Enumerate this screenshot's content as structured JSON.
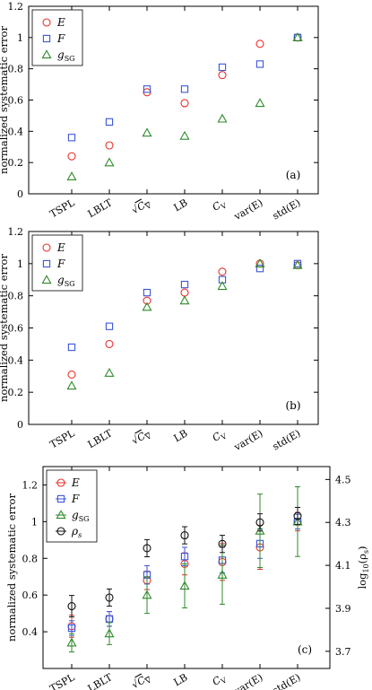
{
  "chart_data": [
    {
      "type": "scatter",
      "panel_label": "(a)",
      "ylabel": "normalized systematic error",
      "ylim": [
        0,
        1.2
      ],
      "yticks": [
        "0",
        "0.2",
        "0.4",
        "0.6",
        "0.8",
        "1",
        "1.2"
      ],
      "categories": [
        "TSPL",
        "LBLT",
        "√C_V",
        "LB",
        "C_V",
        "var(E)",
        "std(E)"
      ],
      "legend_position": "top-left",
      "series": [
        {
          "name": "E",
          "values": [
            0.24,
            0.31,
            0.65,
            0.58,
            0.76,
            0.96,
            1.0
          ]
        },
        {
          "name": "F",
          "values": [
            0.36,
            0.46,
            0.67,
            0.67,
            0.81,
            0.83,
            1.0
          ]
        },
        {
          "name": "g_SG",
          "values": [
            0.11,
            0.2,
            0.39,
            0.37,
            0.48,
            0.58,
            1.0
          ]
        }
      ]
    },
    {
      "type": "scatter",
      "panel_label": "(b)",
      "ylabel": "normalized systematic error",
      "ylim": [
        0,
        1.2
      ],
      "yticks": [
        "0",
        "0.2",
        "0.4",
        "0.6",
        "0.8",
        "1",
        "1.2"
      ],
      "categories": [
        "TSPL",
        "LBLT",
        "√C_V",
        "LB",
        "C_V",
        "var(E)",
        "std(E)"
      ],
      "legend_position": "top-left",
      "series": [
        {
          "name": "E",
          "values": [
            0.31,
            0.5,
            0.77,
            0.82,
            0.95,
            1.0,
            0.99
          ]
        },
        {
          "name": "F",
          "values": [
            0.48,
            0.61,
            0.82,
            0.87,
            0.9,
            0.97,
            1.0
          ]
        },
        {
          "name": "g_SG",
          "values": [
            0.24,
            0.32,
            0.73,
            0.77,
            0.86,
            1.0,
            0.99
          ]
        }
      ]
    },
    {
      "type": "scatter",
      "panel_label": "(c)",
      "ylabel": "normalized systematic error",
      "y2label": "log₁₀(ρ_s)",
      "ylim": [
        0.2,
        1.3
      ],
      "y2lim": [
        3.62,
        4.56
      ],
      "yticks": [
        "0.4",
        "0.6",
        "0.8",
        "1",
        "1.2"
      ],
      "y2ticks": [
        "3.7",
        "3.9",
        "4.1",
        "4.3",
        "4.5"
      ],
      "categories": [
        "TSPL",
        "LBLT",
        "√C_V",
        "LB",
        "C_V",
        "var(E)",
        "std(E)"
      ],
      "legend_position": "top-left",
      "series": [
        {
          "name": "E",
          "axis": "left",
          "values": [
            0.43,
            0.47,
            0.68,
            0.77,
            0.78,
            0.86,
            1.0
          ],
          "errors": [
            0.06,
            0.04,
            0.05,
            0.06,
            0.1,
            0.12,
            0.05
          ]
        },
        {
          "name": "F",
          "axis": "left",
          "values": [
            0.42,
            0.47,
            0.71,
            0.81,
            0.79,
            0.88,
            1.0
          ],
          "errors": [
            0.04,
            0.04,
            0.05,
            0.05,
            0.07,
            0.08,
            0.04
          ]
        },
        {
          "name": "g_SG",
          "axis": "left",
          "values": [
            0.34,
            0.39,
            0.6,
            0.65,
            0.71,
            0.95,
            1.0
          ],
          "errors": [
            0.05,
            0.06,
            0.1,
            0.12,
            0.16,
            0.2,
            0.19
          ]
        },
        {
          "name": "ρ_s",
          "axis": "right",
          "values": [
            3.91,
            3.95,
            4.18,
            4.24,
            4.2,
            4.3,
            4.33
          ],
          "errors": [
            0.05,
            0.04,
            0.04,
            0.04,
            0.04,
            0.04,
            0.04
          ]
        }
      ]
    }
  ],
  "colors": {
    "E": "#e8312a",
    "F": "#3a55d8",
    "g_SG": "#2f8a2a",
    "rho": "#111111",
    "axis": "#000000"
  },
  "markers": {
    "E": "circle",
    "F": "square",
    "g_SG": "triangle",
    "rho": "circle"
  }
}
